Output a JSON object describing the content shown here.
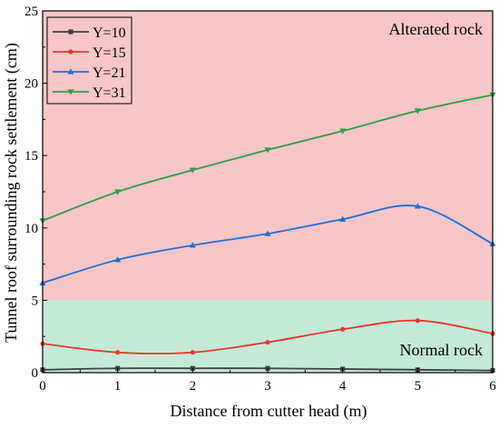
{
  "chart_data": {
    "type": "line",
    "xlabel": "Distance from cutter head (m)",
    "ylabel": "Tunnel roof surrounding rock settlement (cm)",
    "xlim": [
      0,
      6
    ],
    "ylim": [
      0,
      25
    ],
    "x_ticks": [
      0,
      1,
      2,
      3,
      4,
      5,
      6
    ],
    "y_ticks": [
      0,
      5,
      10,
      15,
      20,
      25
    ],
    "grid": false,
    "legend_position": "top-left",
    "regions": [
      {
        "label": "Alterated rock",
        "y_range": [
          5,
          25
        ],
        "color": "#f7c6c8"
      },
      {
        "label": "Normal rock",
        "y_range": [
          0,
          5
        ],
        "color": "#c4ead7"
      }
    ],
    "x": [
      0,
      1,
      2,
      3,
      4,
      5,
      6
    ],
    "series": [
      {
        "name": "Y=10",
        "color": "#3f3f3f",
        "marker": "square",
        "values": [
          0.2,
          0.3,
          0.3,
          0.3,
          0.25,
          0.2,
          0.15
        ]
      },
      {
        "name": "Y=15",
        "color": "#e8352e",
        "marker": "circle",
        "values": [
          2.0,
          1.4,
          1.4,
          2.1,
          3.0,
          3.6,
          2.7
        ]
      },
      {
        "name": "Y=21",
        "color": "#1f6fd6",
        "marker": "triangle-up",
        "values": [
          6.2,
          7.8,
          8.8,
          9.6,
          10.6,
          11.5,
          8.9
        ]
      },
      {
        "name": "Y=31",
        "color": "#2ea043",
        "marker": "triangle-down",
        "values": [
          10.5,
          12.5,
          14.0,
          15.4,
          16.7,
          18.1,
          19.2
        ]
      }
    ]
  }
}
